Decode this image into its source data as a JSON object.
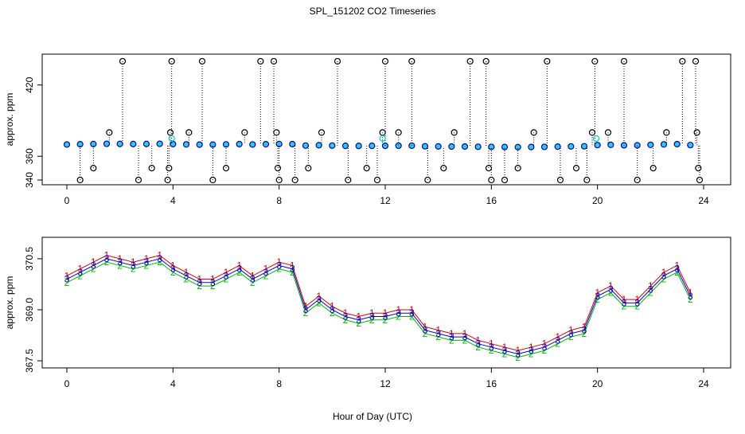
{
  "chart_data": [
    {
      "type": "scatter",
      "title": "SPL_151202  CO2 Timeseries",
      "ylabel": "approx. ppm",
      "xlim": [
        -0.93,
        25.02
      ],
      "ylim": [
        336,
        446
      ],
      "xticks": [
        0,
        4,
        8,
        12,
        16,
        20,
        24
      ],
      "yticks": [
        340,
        360,
        420
      ],
      "series": [
        {
          "color": "#0000cc",
          "fill": "#33cccc",
          "x": [
            0,
            0.5,
            1,
            1.5,
            2,
            2.5,
            3,
            3.5,
            4,
            4.5,
            5,
            5.5,
            6,
            6.5,
            7,
            7.5,
            8,
            8.5,
            9,
            9.5,
            10,
            10.5,
            11,
            11.5,
            12,
            12.5,
            13,
            13.5,
            14,
            14.5,
            15,
            15.5,
            16,
            16.5,
            17,
            17.5,
            18,
            18.5,
            19,
            19.5,
            20,
            20.5,
            21,
            21.5,
            22,
            22.5,
            23,
            23.5
          ],
          "values": [
            369.9,
            370.1,
            370.3,
            370.5,
            370.4,
            370.3,
            370.4,
            370.5,
            370.2,
            370.0,
            369.8,
            369.8,
            370.0,
            370.2,
            369.9,
            370.1,
            370.3,
            370.2,
            369.0,
            369.3,
            369.0,
            368.8,
            368.7,
            368.8,
            368.8,
            368.9,
            368.9,
            368.4,
            368.3,
            368.2,
            368.2,
            368.0,
            367.9,
            367.8,
            367.7,
            367.8,
            367.9,
            368.1,
            368.3,
            368.4,
            369.4,
            369.6,
            369.2,
            369.2,
            369.6,
            370.0,
            370.2,
            369.4
          ]
        },
        {
          "color": "#000000",
          "fill": "none",
          "x": [
            0.5,
            1,
            1.6,
            2.1,
            2.7,
            3.2,
            3.8,
            3.85,
            3.9,
            3.95,
            4.6,
            5.1,
            5.5,
            6,
            6.7,
            7.3,
            7.8,
            7.9,
            7.95,
            8,
            8.6,
            9.1,
            9.6,
            10.2,
            10.6,
            11.3,
            11.7,
            11.9,
            12,
            12.5,
            13,
            13.6,
            14.2,
            14.6,
            15.2,
            15.8,
            15.9,
            16,
            16.5,
            17,
            17.6,
            18.1,
            18.6,
            19.2,
            19.6,
            19.8,
            19.9,
            20.4,
            21,
            21.5,
            22.1,
            22.6,
            23.2,
            23.7,
            23.75,
            23.8,
            23.85
          ],
          "values": [
            340,
            350,
            380,
            440,
            340,
            350,
            340,
            350,
            380,
            440,
            380,
            440,
            340,
            350,
            380,
            440,
            440,
            380,
            350,
            340,
            340,
            350,
            380,
            440,
            340,
            350,
            340,
            380,
            440,
            380,
            440,
            340,
            350,
            380,
            440,
            440,
            350,
            340,
            340,
            350,
            380,
            440,
            340,
            350,
            340,
            380,
            440,
            380,
            440,
            340,
            350,
            380,
            440,
            440,
            380,
            350,
            340
          ]
        },
        {
          "color": "#00cccc",
          "fill": "none",
          "x": [
            3.95,
            11.9,
            19.95
          ],
          "values": [
            375,
            375,
            375
          ]
        }
      ]
    },
    {
      "type": "line",
      "xlabel": "Hour of Day (UTC)",
      "ylabel": "approx. ppm",
      "xlim": [
        -0.93,
        25.02
      ],
      "ylim": [
        367.29,
        371.13
      ],
      "xticks": [
        0,
        4,
        8,
        12,
        16,
        20,
        24
      ],
      "yticks": [
        367.5,
        {
          "value": 369,
          "label": "369.0"
        },
        370.5
      ],
      "x": [
        0,
        0.5,
        1,
        1.5,
        2,
        2.5,
        3,
        3.5,
        4,
        4.5,
        5,
        5.5,
        6,
        6.5,
        7,
        7.5,
        8,
        8.5,
        9,
        9.5,
        10,
        10.5,
        11,
        11.5,
        12,
        12.5,
        13,
        13.5,
        14,
        14.5,
        15,
        15.5,
        16,
        16.5,
        17,
        17.5,
        18,
        18.5,
        19,
        19.5,
        20,
        20.5,
        21,
        21.5,
        22,
        22.5,
        23,
        23.5
      ],
      "series": [
        {
          "name": "1",
          "color": "#dd0000",
          "values": [
            370.0,
            370.2,
            370.4,
            370.6,
            370.5,
            370.4,
            370.5,
            370.6,
            370.3,
            370.1,
            369.9,
            369.9,
            370.1,
            370.3,
            370.0,
            370.2,
            370.4,
            370.3,
            369.1,
            369.4,
            369.1,
            368.9,
            368.8,
            368.9,
            368.9,
            369.0,
            369.0,
            368.5,
            368.4,
            368.3,
            368.3,
            368.1,
            368.0,
            367.9,
            367.8,
            367.9,
            368.0,
            368.2,
            368.4,
            368.5,
            369.5,
            369.7,
            369.3,
            369.3,
            369.7,
            370.1,
            370.3,
            369.5
          ]
        },
        {
          "name": "2",
          "color": "#00bb00",
          "values": [
            369.8,
            370.0,
            370.2,
            370.4,
            370.3,
            370.2,
            370.3,
            370.4,
            370.1,
            369.9,
            369.7,
            369.7,
            369.9,
            370.1,
            369.8,
            370.0,
            370.2,
            370.1,
            368.9,
            369.2,
            368.9,
            368.7,
            368.6,
            368.7,
            368.7,
            368.8,
            368.8,
            368.3,
            368.2,
            368.1,
            368.1,
            367.9,
            367.8,
            367.7,
            367.6,
            367.7,
            367.8,
            368.0,
            368.2,
            368.3,
            369.3,
            369.5,
            369.1,
            369.1,
            369.5,
            369.9,
            370.1,
            369.3
          ]
        },
        {
          "name": "3",
          "color": "#0000dd",
          "values": [
            369.9,
            370.1,
            370.3,
            370.5,
            370.4,
            370.3,
            370.4,
            370.5,
            370.2,
            370.0,
            369.8,
            369.8,
            370.0,
            370.2,
            369.9,
            370.1,
            370.3,
            370.2,
            369.0,
            369.3,
            369.0,
            368.8,
            368.7,
            368.8,
            368.8,
            368.9,
            368.9,
            368.4,
            368.3,
            368.2,
            368.2,
            368.0,
            367.9,
            367.8,
            367.7,
            367.8,
            367.9,
            368.1,
            368.3,
            368.4,
            369.4,
            369.6,
            369.2,
            369.2,
            369.6,
            370.0,
            370.2,
            369.4
          ]
        }
      ]
    }
  ]
}
